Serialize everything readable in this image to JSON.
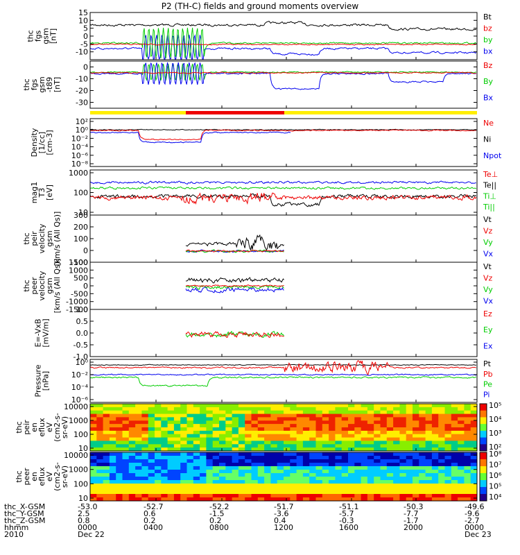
{
  "chart_data": {
    "title": "P2 (TH-C) fields and ground moments overview",
    "type": "multi-panel-timeseries",
    "panels": [
      {
        "id": "fgs_gsm",
        "ylabel": [
          "thc",
          "fgs",
          "gsm",
          "[nT]"
        ],
        "ylim": [
          -15,
          15
        ],
        "yticks": [
          -10,
          -5,
          0,
          5,
          10,
          15
        ],
        "legend": [
          {
            "name": "Bt",
            "color": "#000000"
          },
          {
            "name": "bz",
            "color": "#ee0000"
          },
          {
            "name": "by",
            "color": "#00cc00"
          },
          {
            "name": "bx",
            "color": "#0000ee"
          }
        ]
      },
      {
        "id": "fgs_gsm_tilted",
        "ylabel": [
          "thc",
          "fgs",
          "gsm",
          "-t89",
          "[nT]"
        ],
        "ylim": [
          -35,
          5
        ],
        "yticks": [
          -30,
          -20,
          -10,
          0
        ],
        "legend": [
          {
            "name": "Bz",
            "color": "#ee0000"
          },
          {
            "name": "By",
            "color": "#00cc00"
          },
          {
            "name": "Bx",
            "color": "#0000ee"
          }
        ]
      },
      {
        "id": "density",
        "ylabel": [
          "Density",
          "[1/cc]",
          "[cm-3]"
        ],
        "log": true,
        "yticks": [
          "10²",
          "10⁰",
          "10⁻²",
          "10⁻⁴",
          "10⁻⁶",
          "10⁻⁸"
        ],
        "legend": [
          {
            "name": "Ne",
            "color": "#ee0000"
          },
          {
            "name": "Ni",
            "color": "#000000"
          },
          {
            "name": "Npot",
            "color": "#0000ee"
          }
        ]
      },
      {
        "id": "temperature",
        "ylabel": [
          "mag1",
          "T3",
          "[eV]"
        ],
        "log": true,
        "yticks": [
          "1000",
          "100",
          "10"
        ],
        "legend": [
          {
            "name": "Te⊥",
            "color": "#ee0000"
          },
          {
            "name": "Te||",
            "color": "#000000"
          },
          {
            "name": "Ti⊥",
            "color": "#00cc00"
          },
          {
            "name": "Ti||",
            "color": "#00cc00"
          }
        ]
      },
      {
        "id": "peir_velocity",
        "ylabel": [
          "thc",
          "peir",
          "velocity",
          "gsm",
          "[km/s (All Qs)]"
        ],
        "ylim": [
          -100,
          300
        ],
        "yticks": [
          -100,
          0,
          100,
          200,
          300
        ],
        "legend": [
          {
            "name": "Vt",
            "color": "#000000"
          },
          {
            "name": "Vz",
            "color": "#ee0000"
          },
          {
            "name": "Vy",
            "color": "#00cc00"
          },
          {
            "name": "Vx",
            "color": "#0000ee"
          }
        ]
      },
      {
        "id": "peer_velocity",
        "ylabel": [
          "thc",
          "peer",
          "velocity",
          "gsm",
          "[km/s (All Qs)]"
        ],
        "ylim": [
          -1500,
          1500
        ],
        "yticks": [
          -1500,
          -1000,
          -500,
          0,
          500,
          1000,
          1500
        ],
        "legend": [
          {
            "name": "Vt",
            "color": "#000000"
          },
          {
            "name": "Vz",
            "color": "#ee0000"
          },
          {
            "name": "Vy",
            "color": "#00cc00"
          },
          {
            "name": "Vx",
            "color": "#0000ee"
          }
        ]
      },
      {
        "id": "efield",
        "ylabel": [
          "E=-VxB",
          "[mV/m]"
        ],
        "ylim": [
          -1.0,
          1.0
        ],
        "yticks": [
          "-1.0",
          "-0.5",
          "0.0",
          "0.5",
          "1.0"
        ],
        "legend": [
          {
            "name": "Ez",
            "color": "#ee0000"
          },
          {
            "name": "Ey",
            "color": "#00cc00"
          },
          {
            "name": "Ex",
            "color": "#0000ee"
          }
        ]
      },
      {
        "id": "pressure",
        "ylabel": [
          "Pressure",
          "[nPa]"
        ],
        "log": true,
        "yticks": [
          "10⁰",
          "10⁻²",
          "10⁻⁴",
          "10⁻⁶"
        ],
        "legend": [
          {
            "name": "Pt",
            "color": "#000000"
          },
          {
            "name": "Pb",
            "color": "#ee0000"
          },
          {
            "name": "Pe",
            "color": "#00cc00"
          },
          {
            "name": "Pi",
            "color": "#0000ee"
          }
        ]
      },
      {
        "id": "peir_spec",
        "ylabel": [
          "thc",
          "peir",
          "en",
          "eflux",
          "eV",
          "(cm2-s-",
          "sr-eV)"
        ],
        "log": true,
        "yticks": [
          "10000",
          "1000",
          "100",
          "10"
        ],
        "colorbar": [
          "10⁵",
          "10⁴",
          "10³",
          "10²"
        ]
      },
      {
        "id": "peer_spec",
        "ylabel": [
          "thc",
          "peer",
          "en",
          "eflux",
          "eV",
          "(cm2-s-",
          "sr-eV)"
        ],
        "log": true,
        "yticks": [
          "10000",
          "1000",
          "100",
          "10"
        ],
        "colorbar": [
          "10⁸",
          "10⁷",
          "10⁶",
          "10⁵",
          "10⁴"
        ]
      }
    ],
    "x_axis": {
      "rows": [
        {
          "label": "thc_X-GSM",
          "values": [
            "-53.0",
            "-52.7",
            "-52.2",
            "-51.7",
            "-51.1",
            "-50.3",
            "-49.6"
          ]
        },
        {
          "label": "thc_Y-GSM",
          "values": [
            "2.5",
            "0.6",
            "-1.5",
            "-3.6",
            "-5.7",
            "-7.7",
            "-9.6"
          ]
        },
        {
          "label": "thc_Z-GSM",
          "values": [
            "0.8",
            "0.2",
            "0.2",
            "0.4",
            "-0.3",
            "-1.7",
            "-2.7"
          ]
        },
        {
          "label": "hhmm",
          "values": [
            "0000",
            "0400",
            "0800",
            "1200",
            "1600",
            "2000",
            "0000"
          ]
        },
        {
          "label": "2010",
          "values": [
            "Dec 22",
            "",
            "",
            "",
            "",
            "",
            "Dec 23"
          ]
        }
      ]
    }
  }
}
